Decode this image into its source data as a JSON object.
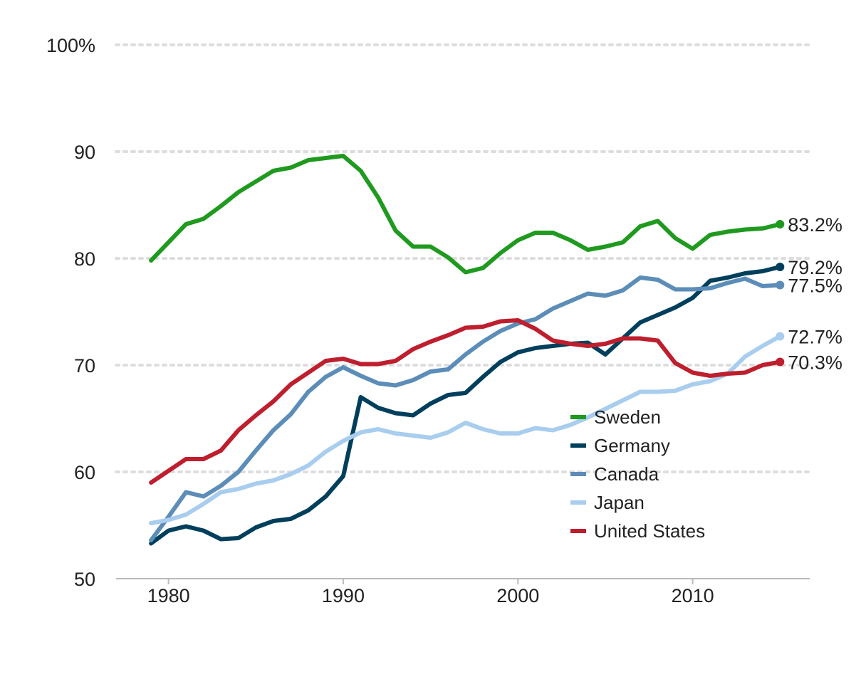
{
  "chart_data": {
    "type": "line",
    "x": [
      1979,
      1980,
      1981,
      1982,
      1983,
      1984,
      1985,
      1986,
      1987,
      1988,
      1989,
      1990,
      1991,
      1992,
      1993,
      1994,
      1995,
      1996,
      1997,
      1998,
      1999,
      2000,
      2001,
      2002,
      2003,
      2004,
      2005,
      2006,
      2007,
      2008,
      2009,
      2010,
      2011,
      2012,
      2013,
      2014,
      2015
    ],
    "series": [
      {
        "name": "Sweden",
        "color": "#1f9a1f",
        "end_label": "83.2%",
        "values": [
          79.8,
          81.5,
          83.2,
          83.7,
          84.9,
          86.2,
          87.2,
          88.2,
          88.5,
          89.2,
          89.4,
          89.6,
          88.2,
          85.7,
          82.6,
          81.1,
          81.1,
          80.1,
          78.7,
          79.1,
          80.5,
          81.7,
          82.4,
          82.4,
          81.7,
          80.8,
          81.1,
          81.5,
          83.0,
          83.5,
          81.9,
          80.9,
          82.2,
          82.5,
          82.7,
          82.8,
          83.2
        ]
      },
      {
        "name": "Germany",
        "color": "#003f5c",
        "end_label": "79.2%",
        "values": [
          53.3,
          54.5,
          54.9,
          54.5,
          53.7,
          53.8,
          54.8,
          55.4,
          55.6,
          56.4,
          57.7,
          59.6,
          67.0,
          66.0,
          65.5,
          65.3,
          66.4,
          67.2,
          67.4,
          68.9,
          70.3,
          71.2,
          71.6,
          71.8,
          72.0,
          72.1,
          71.0,
          72.5,
          74.0,
          74.7,
          75.4,
          76.3,
          77.9,
          78.2,
          78.6,
          78.8,
          79.2
        ]
      },
      {
        "name": "Canada",
        "color": "#5b8db8",
        "end_label": "77.5%",
        "values": [
          53.6,
          55.8,
          58.1,
          57.7,
          58.7,
          60.0,
          62.0,
          63.9,
          65.4,
          67.5,
          68.9,
          69.8,
          69.0,
          68.3,
          68.1,
          68.6,
          69.4,
          69.6,
          71.0,
          72.2,
          73.2,
          73.9,
          74.3,
          75.3,
          76.0,
          76.7,
          76.5,
          77.0,
          78.2,
          78.0,
          77.1,
          77.1,
          77.2,
          77.7,
          78.1,
          77.4,
          77.5
        ]
      },
      {
        "name": "Japan",
        "color": "#a8cdee",
        "end_label": "72.7%",
        "values": [
          55.2,
          55.5,
          56.0,
          57.0,
          58.1,
          58.4,
          58.9,
          59.2,
          59.8,
          60.6,
          61.9,
          62.9,
          63.7,
          64.0,
          63.6,
          63.4,
          63.2,
          63.7,
          64.6,
          64.0,
          63.6,
          63.6,
          64.1,
          63.9,
          64.4,
          65.1,
          65.9,
          66.7,
          67.5,
          67.5,
          67.6,
          68.2,
          68.5,
          69.2,
          70.8,
          71.8,
          72.7
        ]
      },
      {
        "name": "United States",
        "color": "#be1e2d",
        "end_label": "70.3%",
        "values": [
          59.0,
          60.1,
          61.2,
          61.2,
          62.0,
          63.9,
          65.3,
          66.6,
          68.2,
          69.3,
          70.4,
          70.6,
          70.1,
          70.1,
          70.4,
          71.5,
          72.2,
          72.8,
          73.5,
          73.6,
          74.1,
          74.2,
          73.4,
          72.3,
          72.0,
          71.8,
          72.0,
          72.5,
          72.5,
          72.3,
          70.2,
          69.3,
          69.0,
          69.2,
          69.3,
          70.0,
          70.3
        ]
      }
    ],
    "ylim": [
      50,
      100
    ],
    "xlim": [
      1977,
      2016.7
    ],
    "y_ticks": [
      {
        "value": 100,
        "label": "100%"
      },
      {
        "value": 90,
        "label": "90"
      },
      {
        "value": 80,
        "label": "80"
      },
      {
        "value": 70,
        "label": "70"
      },
      {
        "value": 60,
        "label": "60"
      },
      {
        "value": 50,
        "label": "50"
      }
    ],
    "x_ticks": [
      {
        "value": 1980,
        "label": "1980"
      },
      {
        "value": 1990,
        "label": "1990"
      },
      {
        "value": 2000,
        "label": "2000"
      },
      {
        "value": 2010,
        "label": "2010"
      }
    ],
    "grid": true,
    "legend_position": "lower-right",
    "title": "",
    "xlabel": "",
    "ylabel": ""
  }
}
